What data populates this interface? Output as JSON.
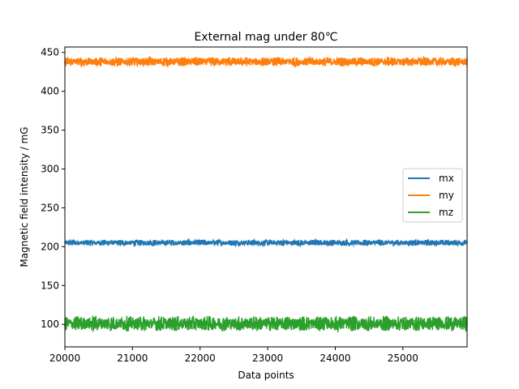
{
  "chart_data": {
    "type": "line",
    "title": "External mag under 80℃",
    "xlabel": "Data points",
    "ylabel": "Magnetic field intensity / mG",
    "xlim": [
      20000,
      25950
    ],
    "ylim": [
      71,
      457
    ],
    "xticks": [
      20000,
      21000,
      22000,
      23000,
      24000,
      25000
    ],
    "yticks": [
      100,
      150,
      200,
      250,
      300,
      350,
      400,
      450
    ],
    "grid": false,
    "legend_position": "center-right",
    "series": [
      {
        "name": "mx",
        "color": "#1f77b4",
        "mean": 205,
        "noise_amplitude": 4
      },
      {
        "name": "my",
        "color": "#ff7f0e",
        "mean": 438,
        "noise_amplitude": 6
      },
      {
        "name": "mz",
        "color": "#2ca02c",
        "mean": 101,
        "noise_amplitude": 10
      }
    ]
  }
}
